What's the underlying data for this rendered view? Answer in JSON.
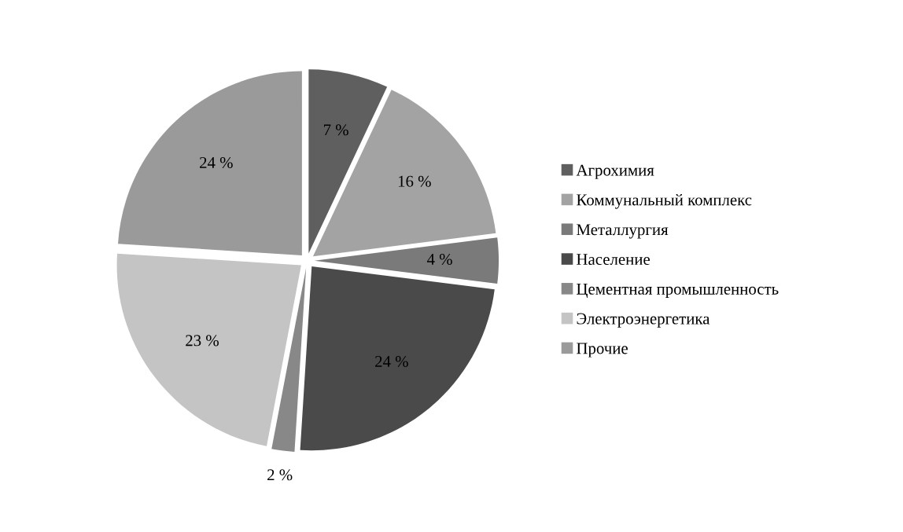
{
  "chart_data": {
    "type": "pie",
    "categories": [
      "Агрохимия",
      "Коммунальный комплекс",
      "Металлургия",
      "Население",
      "Цементная промышленность",
      "Электроэнергетика",
      "Прочие"
    ],
    "values": [
      7,
      16,
      4,
      24,
      2,
      23,
      24
    ],
    "colors": [
      "#5f5f5f",
      "#a3a3a3",
      "#7a7a7a",
      "#4a4a4a",
      "#888888",
      "#c4c4c4",
      "#9a9a9a"
    ],
    "value_labels": [
      "7 %",
      "16 %",
      "4 %",
      "24 %",
      "2 %",
      "23 %",
      "24 %"
    ],
    "legend": "right"
  }
}
